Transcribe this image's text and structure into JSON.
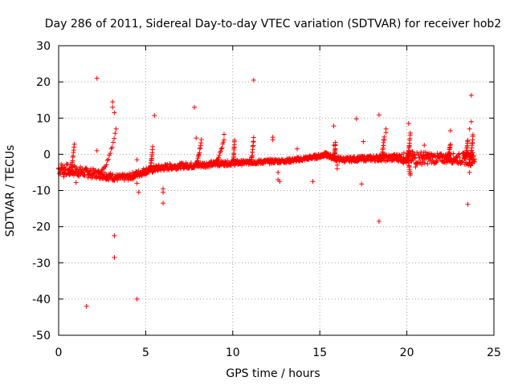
{
  "chart_data": {
    "type": "scatter",
    "title": "Day 286 of 2011, Sidereal Day-to-day VTEC variation (SDTVAR) for receiver hob2",
    "xlabel": "GPS time / hours",
    "ylabel": "SDTVAR / TECUs",
    "xlim": [
      0,
      25
    ],
    "ylim": [
      -50,
      30
    ],
    "xticks": [
      0,
      5,
      10,
      15,
      20,
      25
    ],
    "yticks": [
      -50,
      -40,
      -30,
      -20,
      -10,
      0,
      10,
      20,
      30
    ],
    "xtick_labels": [
      "0",
      "5",
      "10",
      "15",
      "20",
      "25"
    ],
    "ytick_labels": [
      "-50",
      "-40",
      "-30",
      "-20",
      "-10",
      "0",
      "10",
      "20",
      "30"
    ],
    "grid": true,
    "marker": "+",
    "color": "#ff0000",
    "series": [
      {
        "name": "SDTVAR",
        "band": [
          {
            "x": 0.0,
            "y": -4.0
          },
          {
            "x": 0.5,
            "y": -4.2
          },
          {
            "x": 1.0,
            "y": -4.6
          },
          {
            "x": 1.5,
            "y": -5.0
          },
          {
            "x": 2.0,
            "y": -5.3
          },
          {
            "x": 2.5,
            "y": -5.6
          },
          {
            "x": 3.0,
            "y": -6.2
          },
          {
            "x": 3.5,
            "y": -6.5
          },
          {
            "x": 4.0,
            "y": -6.3
          },
          {
            "x": 4.5,
            "y": -5.5
          },
          {
            "x": 5.0,
            "y": -4.6
          },
          {
            "x": 5.5,
            "y": -4.0
          },
          {
            "x": 6.0,
            "y": -3.7
          },
          {
            "x": 6.5,
            "y": -3.4
          },
          {
            "x": 7.0,
            "y": -3.2
          },
          {
            "x": 7.5,
            "y": -3.1
          },
          {
            "x": 8.0,
            "y": -3.0
          },
          {
            "x": 8.5,
            "y": -2.8
          },
          {
            "x": 9.0,
            "y": -2.6
          },
          {
            "x": 9.5,
            "y": -2.5
          },
          {
            "x": 10.0,
            "y": -2.4
          },
          {
            "x": 10.5,
            "y": -2.3
          },
          {
            "x": 11.0,
            "y": -2.2
          },
          {
            "x": 11.5,
            "y": -2.1
          },
          {
            "x": 12.0,
            "y": -2.0
          },
          {
            "x": 12.5,
            "y": -1.9
          },
          {
            "x": 13.0,
            "y": -1.8
          },
          {
            "x": 13.5,
            "y": -1.6
          },
          {
            "x": 14.0,
            "y": -1.3
          },
          {
            "x": 14.5,
            "y": -0.9
          },
          {
            "x": 15.0,
            "y": -0.5
          },
          {
            "x": 15.3,
            "y": 0.0
          },
          {
            "x": 15.6,
            "y": -0.6
          },
          {
            "x": 16.0,
            "y": -1.3
          },
          {
            "x": 16.5,
            "y": -1.5
          },
          {
            "x": 17.0,
            "y": -1.3
          },
          {
            "x": 17.5,
            "y": -1.2
          },
          {
            "x": 18.0,
            "y": -1.1
          },
          {
            "x": 18.5,
            "y": -1.0
          },
          {
            "x": 19.0,
            "y": -1.0
          },
          {
            "x": 19.5,
            "y": -0.9
          },
          {
            "x": 20.0,
            "y": -0.9
          },
          {
            "x": 20.5,
            "y": -1.0
          },
          {
            "x": 21.0,
            "y": -1.0
          },
          {
            "x": 21.5,
            "y": -1.1
          },
          {
            "x": 22.0,
            "y": -1.1
          },
          {
            "x": 22.5,
            "y": -1.1
          },
          {
            "x": 23.0,
            "y": -1.2
          },
          {
            "x": 23.5,
            "y": -1.2
          },
          {
            "x": 23.9,
            "y": -1.3
          }
        ],
        "band_halfwidth": [
          1.8,
          1.6,
          1.5,
          1.4,
          1.3,
          1.2,
          1.0,
          0.9,
          0.9,
          1.0,
          1.0,
          1.0,
          0.9,
          0.9,
          0.8,
          0.8,
          0.8,
          0.8,
          0.7,
          0.7,
          0.7,
          0.7,
          0.6,
          0.6,
          0.6,
          0.6,
          0.6,
          0.6,
          0.6,
          0.6,
          0.6,
          0.6,
          0.6,
          0.7,
          0.7,
          0.7,
          0.7,
          0.8,
          0.9,
          1.0,
          1.1,
          1.5,
          2.0,
          1.8,
          1.5,
          1.3,
          1.3,
          1.5,
          1.8,
          2.0
        ],
        "arcs": [
          [
            {
              "x": 0.6,
              "y": -5.5
            },
            {
              "x": 0.9,
              "y": 3.0
            }
          ],
          [
            {
              "x": 2.3,
              "y": -5.0
            },
            {
              "x": 3.3,
              "y": 7.0
            }
          ],
          [
            {
              "x": 5.2,
              "y": -4.2
            },
            {
              "x": 5.4,
              "y": 2.0
            }
          ],
          [
            {
              "x": 7.8,
              "y": -3.0
            },
            {
              "x": 8.2,
              "y": 4.0
            }
          ],
          [
            {
              "x": 8.8,
              "y": -2.8
            },
            {
              "x": 9.5,
              "y": 4.0
            }
          ],
          [
            {
              "x": 10.0,
              "y": -2.5
            },
            {
              "x": 10.1,
              "y": 4.0
            }
          ],
          [
            {
              "x": 11.0,
              "y": -2.2
            },
            {
              "x": 11.2,
              "y": 4.5
            }
          ],
          [
            {
              "x": 15.8,
              "y": -1.0
            },
            {
              "x": 15.9,
              "y": 3.0
            }
          ],
          [
            {
              "x": 18.5,
              "y": -1.0
            },
            {
              "x": 18.7,
              "y": 5.0
            }
          ],
          [
            {
              "x": 20.0,
              "y": -1.0
            },
            {
              "x": 20.2,
              "y": 6.0
            }
          ],
          [
            {
              "x": 20.0,
              "y": -1.0
            },
            {
              "x": 20.2,
              "y": -6.0
            }
          ],
          [
            {
              "x": 22.3,
              "y": -1.1
            },
            {
              "x": 22.5,
              "y": 3.0
            }
          ],
          [
            {
              "x": 23.3,
              "y": -1.2
            },
            {
              "x": 23.5,
              "y": 4.0
            }
          ],
          [
            {
              "x": 23.6,
              "y": -1.2
            },
            {
              "x": 23.8,
              "y": 5.5
            }
          ]
        ],
        "outliers": [
          {
            "x": 1.6,
            "y": -42.0
          },
          {
            "x": 2.2,
            "y": 21.0
          },
          {
            "x": 2.2,
            "y": 1.0
          },
          {
            "x": 3.1,
            "y": 14.5
          },
          {
            "x": 3.1,
            "y": 13.0
          },
          {
            "x": 3.2,
            "y": 11.5
          },
          {
            "x": 3.2,
            "y": -22.5
          },
          {
            "x": 3.2,
            "y": -28.5
          },
          {
            "x": 4.5,
            "y": -40.0
          },
          {
            "x": 4.5,
            "y": -1.5
          },
          {
            "x": 4.5,
            "y": -8.0
          },
          {
            "x": 4.6,
            "y": -10.5
          },
          {
            "x": 5.5,
            "y": 10.7
          },
          {
            "x": 6.0,
            "y": -9.5
          },
          {
            "x": 6.0,
            "y": -10.5
          },
          {
            "x": 6.0,
            "y": -13.5
          },
          {
            "x": 7.8,
            "y": 13.0
          },
          {
            "x": 7.9,
            "y": 4.5
          },
          {
            "x": 9.5,
            "y": 5.5
          },
          {
            "x": 11.2,
            "y": 20.5
          },
          {
            "x": 12.3,
            "y": 4.7
          },
          {
            "x": 12.3,
            "y": 4.0
          },
          {
            "x": 12.6,
            "y": -5.0
          },
          {
            "x": 12.6,
            "y": -7.0
          },
          {
            "x": 12.7,
            "y": -7.5
          },
          {
            "x": 13.7,
            "y": 1.5
          },
          {
            "x": 14.6,
            "y": -7.5
          },
          {
            "x": 15.8,
            "y": 7.8
          },
          {
            "x": 15.8,
            "y": 2.5
          },
          {
            "x": 16.0,
            "y": -3.0
          },
          {
            "x": 16.0,
            "y": -4.0
          },
          {
            "x": 17.1,
            "y": 9.8
          },
          {
            "x": 17.4,
            "y": -8.2
          },
          {
            "x": 17.5,
            "y": 3.5
          },
          {
            "x": 18.4,
            "y": 10.9
          },
          {
            "x": 18.4,
            "y": -18.5
          },
          {
            "x": 18.8,
            "y": 7.0
          },
          {
            "x": 18.8,
            "y": 6.0
          },
          {
            "x": 20.1,
            "y": 8.5
          },
          {
            "x": 22.5,
            "y": 6.5
          },
          {
            "x": 23.5,
            "y": -13.8
          },
          {
            "x": 23.7,
            "y": 16.3
          },
          {
            "x": 23.7,
            "y": 9.0
          },
          {
            "x": 23.6,
            "y": 7.0
          },
          {
            "x": 23.6,
            "y": -5.0
          },
          {
            "x": 20.5,
            "y": -3.5
          },
          {
            "x": 21.0,
            "y": 2.5
          },
          {
            "x": 19.8,
            "y": -2.5
          },
          {
            "x": 1.0,
            "y": -7.8
          },
          {
            "x": 0.3,
            "y": -6.2
          }
        ]
      }
    ]
  }
}
